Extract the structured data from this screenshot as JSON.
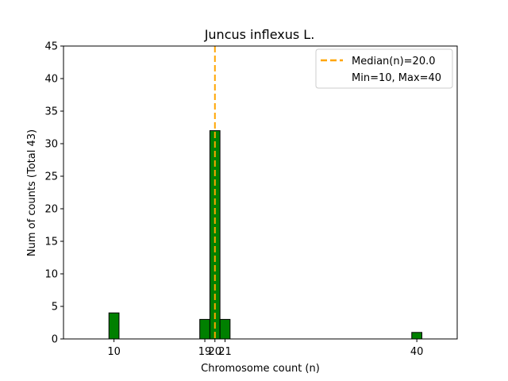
{
  "chart_data": {
    "type": "bar",
    "title": "Juncus inflexus L.",
    "xlabel": "Chromosome count (n)",
    "ylabel": "Num of counts        (Total 43)",
    "xlim": [
      5,
      44
    ],
    "ylim": [
      0,
      45
    ],
    "yticks": [
      0,
      5,
      10,
      15,
      20,
      25,
      30,
      35,
      40,
      45
    ],
    "xticks": [
      10,
      19,
      20,
      21,
      40
    ],
    "bar_width": 1,
    "bar_color": "#008000",
    "bar_edge_color": "#000000",
    "bars": [
      {
        "x": 10,
        "value": 4
      },
      {
        "x": 19,
        "value": 3
      },
      {
        "x": 20,
        "value": 32
      },
      {
        "x": 21,
        "value": 3
      },
      {
        "x": 40,
        "value": 1
      }
    ],
    "median_line": {
      "x": 20,
      "color": "#FFA500"
    },
    "legend": {
      "position": "upper-right",
      "entries": [
        "Median(n)=20.0",
        "Min=10, Max=40"
      ]
    },
    "grid": false
  }
}
